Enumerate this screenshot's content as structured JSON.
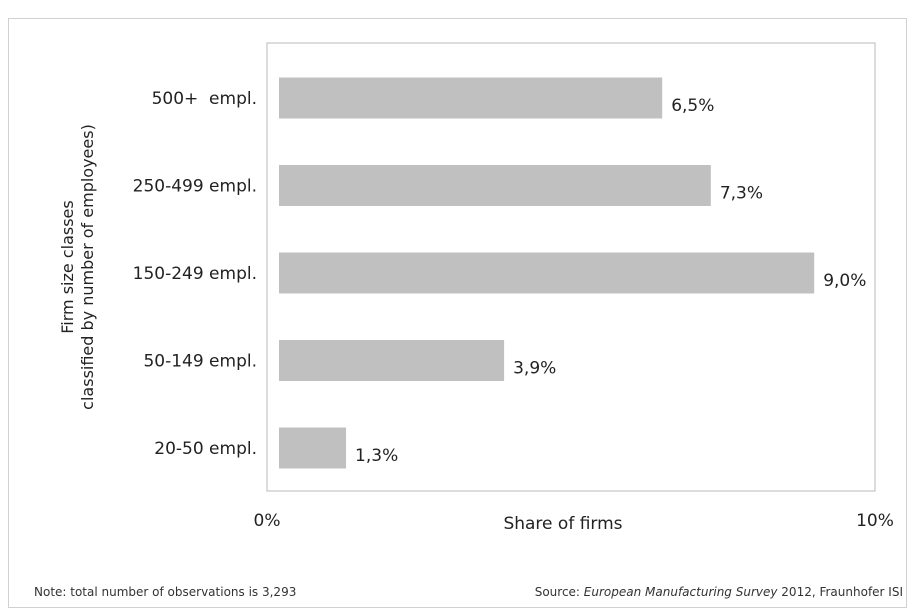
{
  "chart_data": {
    "type": "bar",
    "orientation": "horizontal",
    "categories": [
      "500+  empl.",
      "250-499 empl.",
      "150-249 empl.",
      "50-149 empl.",
      "20-50 empl."
    ],
    "values": [
      6.5,
      7.3,
      9.0,
      3.9,
      1.3
    ],
    "value_labels": [
      "6,5%",
      "7,3%",
      "9,0%",
      "3,9%",
      "1,3%"
    ],
    "xlim": [
      0,
      10
    ],
    "x_tick_labels": [
      "0%",
      "10%"
    ],
    "xlabel": "Share of firms",
    "ylabel_line1": "Firm size classes",
    "ylabel_line2": "classified by number of employees)",
    "bar_color": "#c0c0c0",
    "grid": false
  },
  "footer": {
    "note": "Note: total number of observations is 3,293",
    "source_prefix": "Source: ",
    "source_title": "European Manufacturing Survey",
    "source_suffix": " 2012,  Fraunhofer ISI"
  }
}
